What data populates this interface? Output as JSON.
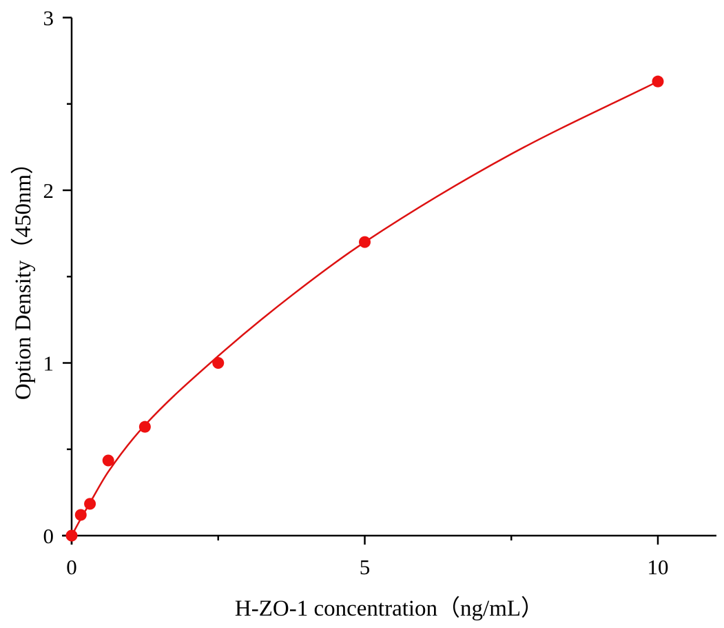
{
  "chart_data": {
    "type": "scatter",
    "title": "",
    "xlabel": "H-ZO-1 concentration（ng/mL）",
    "ylabel": "Option Density（450nm）",
    "xlim": [
      0,
      11
    ],
    "ylim": [
      0,
      3
    ],
    "x_ticks": [
      0,
      5,
      10
    ],
    "x_tick_labels": [
      "0",
      "5",
      "10"
    ],
    "x_minor_ticks": [
      2.5,
      7.5
    ],
    "y_ticks": [
      0,
      1,
      2,
      3
    ],
    "y_tick_labels": [
      "0",
      "1",
      "2",
      "3"
    ],
    "y_minor_ticks": [
      0.5,
      1.5,
      2.5
    ],
    "grid": false,
    "legend": "none",
    "series": [
      {
        "x": [
          0,
          0.156,
          0.3125,
          0.625,
          1.25,
          2.5,
          5,
          10
        ],
        "y": [
          0,
          0.12,
          0.184,
          0.435,
          0.63,
          1.0,
          1.7,
          2.63
        ],
        "color": "#ee1111",
        "marker": "circle"
      }
    ],
    "fit_curve": {
      "color": "#dd1111",
      "x": [
        0,
        0.16,
        0.3125,
        0.625,
        1.25,
        2.5,
        3.75,
        5,
        7.5,
        10
      ],
      "y": [
        0,
        0.1,
        0.19,
        0.37,
        0.64,
        1.04,
        1.39,
        1.7,
        2.21,
        2.63
      ]
    }
  }
}
